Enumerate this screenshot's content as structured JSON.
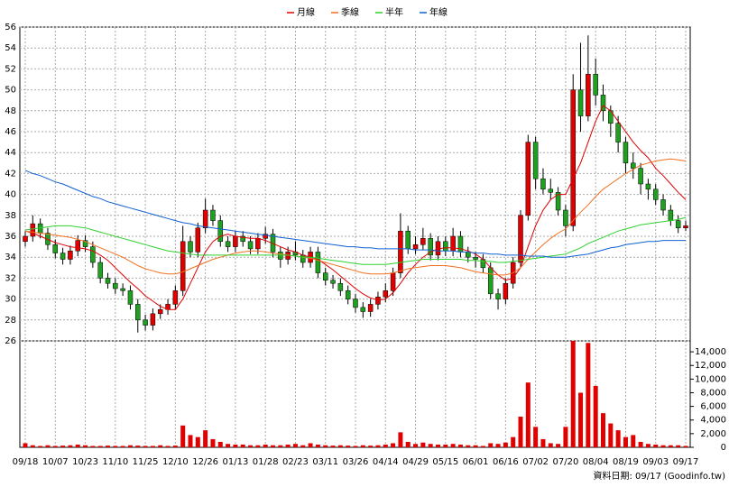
{
  "chart_data": [
    {
      "type": "candlestick",
      "source": "資料日期: 09/17 (Goodinfo.tw)",
      "up_color": "#e00000",
      "down_color": "#20a020",
      "ylim": [
        26,
        56
      ],
      "yticks": [
        26,
        28,
        30,
        32,
        34,
        36,
        38,
        40,
        42,
        44,
        46,
        48,
        50,
        52,
        54,
        56
      ],
      "grid": true,
      "categories": [
        "09/18",
        null,
        null,
        null,
        "10/07",
        null,
        null,
        null,
        "10/23",
        null,
        null,
        null,
        "11/10",
        null,
        null,
        null,
        "11/25",
        null,
        null,
        null,
        "12/10",
        null,
        null,
        null,
        "12/26",
        null,
        null,
        null,
        "01/13",
        null,
        null,
        null,
        "01/28",
        null,
        null,
        null,
        "02/23",
        null,
        null,
        null,
        "03/11",
        null,
        null,
        null,
        "03/26",
        null,
        null,
        null,
        "04/14",
        null,
        null,
        null,
        "04/29",
        null,
        null,
        null,
        "05/15",
        null,
        null,
        null,
        "06/01",
        null,
        null,
        null,
        "06/16",
        null,
        null,
        null,
        "07/02",
        null,
        null,
        null,
        "07/20",
        null,
        null,
        null,
        "08/04",
        null,
        null,
        null,
        "08/19",
        null,
        null,
        null,
        "09/03",
        null,
        null,
        null,
        "09/17"
      ],
      "ohlc": [
        [
          35.5,
          36.5,
          35.0,
          36.0
        ],
        [
          36.0,
          38.0,
          35.5,
          37.2
        ],
        [
          37.2,
          37.7,
          35.8,
          36.3
        ],
        [
          36.3,
          36.8,
          34.7,
          35.2
        ],
        [
          35.2,
          35.7,
          33.9,
          34.4
        ],
        [
          34.4,
          34.9,
          33.3,
          33.8
        ],
        [
          33.8,
          35.1,
          33.3,
          34.6
        ],
        [
          34.6,
          36.1,
          34.1,
          35.6
        ],
        [
          35.6,
          36.1,
          34.5,
          35.0
        ],
        [
          35.0,
          35.5,
          33.0,
          33.5
        ],
        [
          33.5,
          34.0,
          31.5,
          32.0
        ],
        [
          32.0,
          32.5,
          31.0,
          31.5
        ],
        [
          31.5,
          32.0,
          30.5,
          31.0
        ],
        [
          31.0,
          31.5,
          30.3,
          30.8
        ],
        [
          30.8,
          31.3,
          29.0,
          29.5
        ],
        [
          29.5,
          30.0,
          26.8,
          28.0
        ],
        [
          28.0,
          28.5,
          27.0,
          27.5
        ],
        [
          27.5,
          29.1,
          27.0,
          28.6
        ],
        [
          28.6,
          29.5,
          28.1,
          29.0
        ],
        [
          29.0,
          30.0,
          28.5,
          29.5
        ],
        [
          29.5,
          31.3,
          29.0,
          30.8
        ],
        [
          30.8,
          37.0,
          30.3,
          35.5
        ],
        [
          35.5,
          36.0,
          34.0,
          34.5
        ],
        [
          34.5,
          37.3,
          34.0,
          36.8
        ],
        [
          36.8,
          39.6,
          36.3,
          38.5
        ],
        [
          38.5,
          39.0,
          37.0,
          37.5
        ],
        [
          37.5,
          38.0,
          35.0,
          35.5
        ],
        [
          35.5,
          36.0,
          34.5,
          35.0
        ],
        [
          35.0,
          36.5,
          34.5,
          36.0
        ],
        [
          36.0,
          36.5,
          35.0,
          35.5
        ],
        [
          35.5,
          36.0,
          34.3,
          34.8
        ],
        [
          34.8,
          36.3,
          34.3,
          35.8
        ],
        [
          35.8,
          36.9,
          35.3,
          36.2
        ],
        [
          36.2,
          36.7,
          34.0,
          34.5
        ],
        [
          34.5,
          35.0,
          33.0,
          33.8
        ],
        [
          33.8,
          35.0,
          33.3,
          34.5
        ],
        [
          34.5,
          35.5,
          33.7,
          34.2
        ],
        [
          34.2,
          34.7,
          33.0,
          33.5
        ],
        [
          33.5,
          35.0,
          33.0,
          34.5
        ],
        [
          34.5,
          35.0,
          32.0,
          32.5
        ],
        [
          32.5,
          33.0,
          31.3,
          31.8
        ],
        [
          31.8,
          32.3,
          31.0,
          31.5
        ],
        [
          31.5,
          32.0,
          30.3,
          30.8
        ],
        [
          30.8,
          31.3,
          29.5,
          30.0
        ],
        [
          30.0,
          30.5,
          28.7,
          29.2
        ],
        [
          29.2,
          29.7,
          28.2,
          28.8
        ],
        [
          28.8,
          30.0,
          28.3,
          29.5
        ],
        [
          29.5,
          30.7,
          29.0,
          30.2
        ],
        [
          30.2,
          31.5,
          29.7,
          30.8
        ],
        [
          30.8,
          33.0,
          30.3,
          32.5
        ],
        [
          32.5,
          38.2,
          32.0,
          36.5
        ],
        [
          36.5,
          37.0,
          34.3,
          34.8
        ],
        [
          34.8,
          36.0,
          34.3,
          35.2
        ],
        [
          35.2,
          36.8,
          34.7,
          35.8
        ],
        [
          35.8,
          36.3,
          33.7,
          34.2
        ],
        [
          34.2,
          36.0,
          33.7,
          35.5
        ],
        [
          35.5,
          36.0,
          34.1,
          34.6
        ],
        [
          34.6,
          36.8,
          34.1,
          36.0
        ],
        [
          36.0,
          36.5,
          34.0,
          34.5
        ],
        [
          34.5,
          35.0,
          33.5,
          34.0
        ],
        [
          34.0,
          34.5,
          33.0,
          33.8
        ],
        [
          33.8,
          34.3,
          32.5,
          33.0
        ],
        [
          33.0,
          33.5,
          30.0,
          30.5
        ],
        [
          30.5,
          31.0,
          29.0,
          30.0
        ],
        [
          30.0,
          32.0,
          29.5,
          31.5
        ],
        [
          31.5,
          34.0,
          31.0,
          33.5
        ],
        [
          33.5,
          38.5,
          33.0,
          38.0
        ],
        [
          38.0,
          45.7,
          37.5,
          45.0
        ],
        [
          45.0,
          45.5,
          40.5,
          41.5
        ],
        [
          41.5,
          42.5,
          40.0,
          40.5
        ],
        [
          40.5,
          41.5,
          39.5,
          40.2
        ],
        [
          40.2,
          40.7,
          38.0,
          38.5
        ],
        [
          38.5,
          39.0,
          36.0,
          37.0
        ],
        [
          37.0,
          51.5,
          36.5,
          50.0
        ],
        [
          50.0,
          54.5,
          46.0,
          47.5
        ],
        [
          47.5,
          55.2,
          47.0,
          51.5
        ],
        [
          51.5,
          53.0,
          48.5,
          49.5
        ],
        [
          49.5,
          50.5,
          47.0,
          48.0
        ],
        [
          48.0,
          48.5,
          45.5,
          46.8
        ],
        [
          46.8,
          47.5,
          44.0,
          45.0
        ],
        [
          45.0,
          45.5,
          42.0,
          43.0
        ],
        [
          43.0,
          44.0,
          41.5,
          42.5
        ],
        [
          42.5,
          43.0,
          40.0,
          41.0
        ],
        [
          41.0,
          41.5,
          39.5,
          40.5
        ],
        [
          40.5,
          41.0,
          39.0,
          39.5
        ],
        [
          39.5,
          40.0,
          38.0,
          38.5
        ],
        [
          38.5,
          39.0,
          37.0,
          37.5
        ],
        [
          37.5,
          38.0,
          36.3,
          36.8
        ],
        [
          36.8,
          37.5,
          36.5,
          37.0
        ]
      ],
      "series": [
        {
          "name": "月線",
          "color": "#e00000",
          "values": [
            36.5,
            36.3,
            36.0,
            35.7,
            35.4,
            35.2,
            35.0,
            34.9,
            34.8,
            34.6,
            34.2,
            33.7,
            33.0,
            32.3,
            31.6,
            31.0,
            30.3,
            29.8,
            29.3,
            29.0,
            29.0,
            30.0,
            31.5,
            33.0,
            34.5,
            35.5,
            36.0,
            36.2,
            36.0,
            35.9,
            35.8,
            35.8,
            35.6,
            35.3,
            35.0,
            34.7,
            34.5,
            34.2,
            34.0,
            33.8,
            33.3,
            32.8,
            32.2,
            31.6,
            31.0,
            30.5,
            30.1,
            29.9,
            30.0,
            30.6,
            31.5,
            32.5,
            33.3,
            34.0,
            34.5,
            34.8,
            34.9,
            34.9,
            34.8,
            34.6,
            34.3,
            33.8,
            33.0,
            32.3,
            31.8,
            32.0,
            33.0,
            35.0,
            37.0,
            38.5,
            39.5,
            40.0,
            40.0,
            41.5,
            43.0,
            45.0,
            47.0,
            48.5,
            48.0,
            47.0,
            46.0,
            45.0,
            44.2,
            43.5,
            42.5,
            41.8,
            41.0,
            40.2,
            39.5
          ]
        },
        {
          "name": "季線",
          "color": "#f07020",
          "values": [
            36.5,
            36.4,
            36.3,
            36.2,
            36.1,
            36.0,
            35.9,
            35.7,
            35.5,
            35.2,
            34.9,
            34.6,
            34.3,
            34.0,
            33.6,
            33.2,
            32.9,
            32.7,
            32.5,
            32.4,
            32.4,
            32.6,
            32.9,
            33.2,
            33.5,
            33.8,
            34.0,
            34.2,
            34.4,
            34.5,
            34.6,
            34.6,
            34.5,
            34.4,
            34.3,
            34.2,
            34.1,
            34.0,
            33.9,
            33.7,
            33.5,
            33.3,
            33.1,
            32.9,
            32.7,
            32.5,
            32.4,
            32.4,
            32.4,
            32.5,
            32.7,
            32.9,
            33.0,
            33.1,
            33.2,
            33.2,
            33.2,
            33.1,
            33.0,
            32.8,
            32.6,
            32.5,
            32.4,
            32.3,
            32.3,
            32.5,
            33.0,
            33.8,
            34.5,
            35.2,
            35.8,
            36.3,
            36.7,
            37.5,
            38.3,
            39.0,
            39.8,
            40.5,
            41.0,
            41.5,
            42.0,
            42.4,
            42.8,
            43.0,
            43.2,
            43.3,
            43.4,
            43.3,
            43.2
          ]
        },
        {
          "name": "半年",
          "color": "#30d030",
          "values": [
            36.6,
            36.7,
            36.8,
            36.9,
            37.0,
            37.0,
            37.0,
            36.9,
            36.8,
            36.6,
            36.4,
            36.2,
            36.0,
            35.8,
            35.6,
            35.4,
            35.2,
            35.0,
            34.8,
            34.6,
            34.5,
            34.4,
            34.3,
            34.2,
            34.2,
            34.2,
            34.2,
            34.2,
            34.2,
            34.2,
            34.2,
            34.2,
            34.2,
            34.2,
            34.2,
            34.2,
            34.1,
            34.0,
            34.0,
            33.9,
            33.8,
            33.7,
            33.6,
            33.5,
            33.4,
            33.3,
            33.3,
            33.3,
            33.3,
            33.4,
            33.5,
            33.6,
            33.7,
            33.8,
            33.8,
            33.8,
            33.8,
            33.8,
            33.8,
            33.7,
            33.7,
            33.6,
            33.6,
            33.5,
            33.5,
            33.6,
            33.7,
            33.8,
            33.9,
            34.0,
            34.1,
            34.2,
            34.3,
            34.6,
            34.9,
            35.3,
            35.6,
            35.9,
            36.2,
            36.5,
            36.7,
            36.9,
            37.1,
            37.2,
            37.3,
            37.4,
            37.5,
            37.6,
            37.8
          ]
        },
        {
          "name": "年線",
          "color": "#1060d0",
          "values": [
            42.3,
            42.0,
            41.8,
            41.5,
            41.2,
            41.0,
            40.7,
            40.4,
            40.1,
            39.8,
            39.6,
            39.3,
            39.1,
            38.9,
            38.7,
            38.5,
            38.3,
            38.1,
            37.9,
            37.7,
            37.5,
            37.3,
            37.2,
            37.0,
            36.9,
            36.8,
            36.7,
            36.6,
            36.5,
            36.4,
            36.3,
            36.2,
            36.1,
            36.0,
            35.9,
            35.8,
            35.7,
            35.6,
            35.5,
            35.4,
            35.3,
            35.2,
            35.1,
            35.0,
            35.0,
            34.9,
            34.9,
            34.8,
            34.8,
            34.8,
            34.8,
            34.8,
            34.7,
            34.7,
            34.7,
            34.6,
            34.6,
            34.6,
            34.5,
            34.5,
            34.4,
            34.4,
            34.3,
            34.3,
            34.2,
            34.2,
            34.2,
            34.1,
            34.1,
            34.1,
            34.0,
            34.0,
            34.0,
            34.1,
            34.2,
            34.3,
            34.5,
            34.7,
            34.9,
            35.0,
            35.2,
            35.3,
            35.4,
            35.5,
            35.5,
            35.6,
            35.6,
            35.6,
            35.6
          ]
        }
      ]
    },
    {
      "type": "bar",
      "color": "#e00000",
      "ylim": [
        0,
        15600
      ],
      "yticks": [
        0,
        {
          "value": 2000,
          "label": "2,000"
        },
        {
          "value": 4000,
          "label": "4,000"
        },
        {
          "value": 6000,
          "label": "6,000"
        },
        {
          "value": 8000,
          "label": "8,000"
        },
        {
          "value": 10000,
          "label": "10,000"
        },
        {
          "value": 12000,
          "label": "12,000"
        },
        {
          "value": 14000,
          "label": "14,000"
        }
      ],
      "values": [
        600,
        300,
        200,
        300,
        200,
        250,
        300,
        400,
        300,
        200,
        200,
        250,
        200,
        200,
        300,
        250,
        200,
        200,
        300,
        200,
        250,
        3200,
        1800,
        1500,
        2500,
        1200,
        800,
        500,
        400,
        400,
        300,
        300,
        400,
        300,
        300,
        400,
        500,
        300,
        600,
        400,
        300,
        250,
        300,
        250,
        200,
        300,
        250,
        300,
        400,
        600,
        2200,
        800,
        500,
        700,
        500,
        400,
        400,
        500,
        400,
        300,
        300,
        200,
        600,
        500,
        700,
        1500,
        4500,
        9500,
        3000,
        1200,
        600,
        500,
        3000,
        15600,
        8000,
        15300,
        9000,
        5000,
        3500,
        2500,
        1500,
        1800,
        800,
        500,
        400,
        300,
        300,
        300,
        200
      ]
    }
  ]
}
